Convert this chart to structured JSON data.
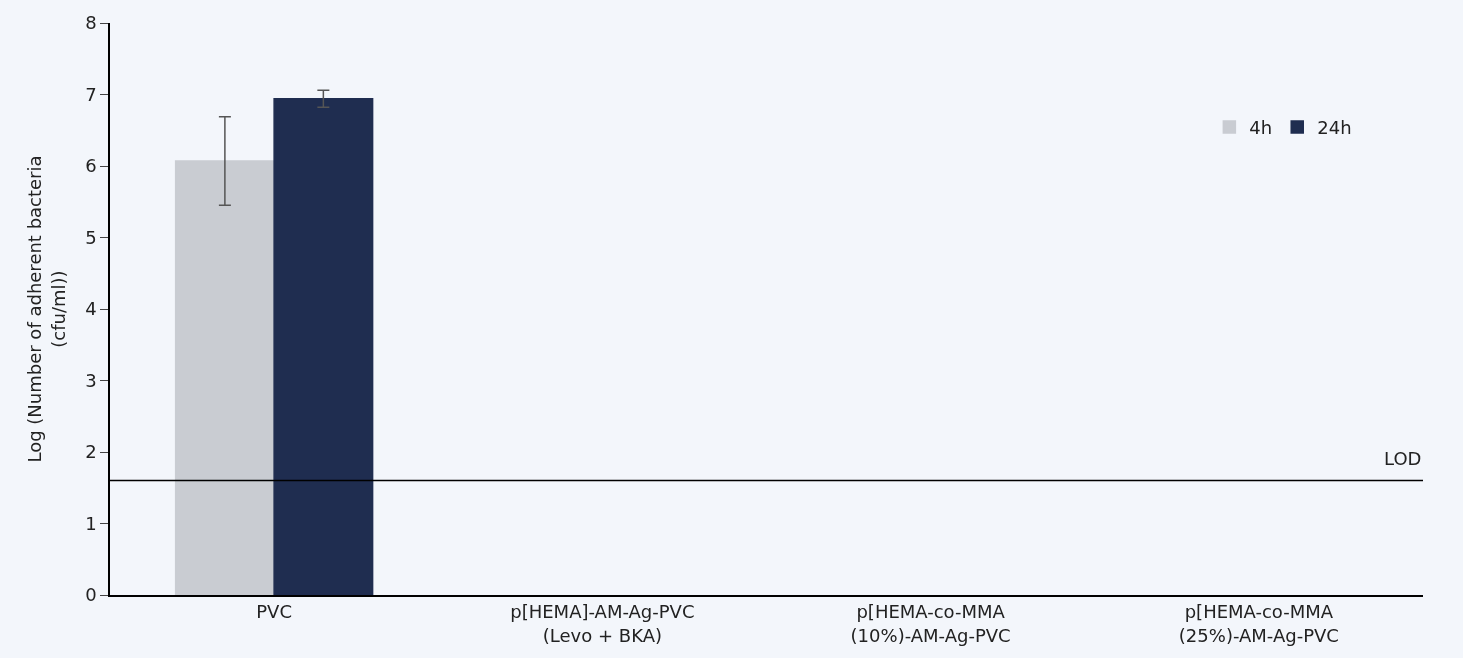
{
  "chart_data": {
    "type": "bar",
    "ylabel": "Log (Number of adherent bacteria\n(cfu/ml))",
    "categories": [
      "PVC",
      "p[HEMA]-AM-Ag-PVC\n(Levo + BKA)",
      "p[HEMA-co-MMA\n(10%)-AM-Ag-PVC",
      "p[HEMA-co-MMA\n(25%)-AM-Ag-PVC"
    ],
    "series": [
      {
        "name": "4h",
        "color": "#c9ccd2",
        "values": [
          6.07,
          null,
          null,
          null
        ],
        "errors": [
          0.62,
          null,
          null,
          null
        ]
      },
      {
        "name": "24h",
        "color": "#1f2d50",
        "values": [
          6.94,
          null,
          null,
          null
        ],
        "errors": [
          0.12,
          null,
          null,
          null
        ]
      }
    ],
    "ylim": [
      0,
      8
    ],
    "yticks": [
      0,
      1,
      2,
      3,
      4,
      5,
      6,
      7,
      8
    ],
    "ref_lines": [
      {
        "axis": "y",
        "value": 1.6,
        "label": "LOD",
        "color": "#000000"
      }
    ],
    "grid": false,
    "legend": "top right"
  }
}
